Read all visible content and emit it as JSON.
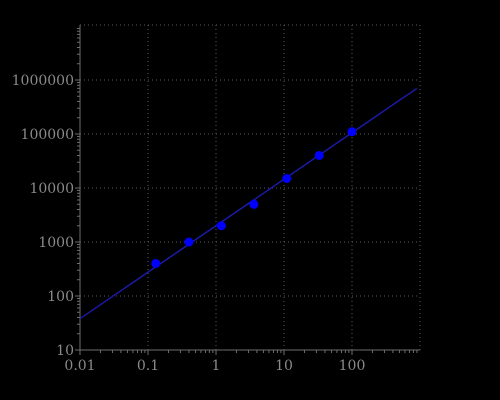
{
  "chart_data": {
    "type": "scatter",
    "title": "",
    "xlabel": "",
    "ylabel": "",
    "x_scale": "log",
    "y_scale": "log",
    "xlim": [
      0.01,
      1000
    ],
    "ylim": [
      10,
      10000000
    ],
    "x_ticks": [
      {
        "value": 0.01,
        "label": "0.01"
      },
      {
        "value": 0.1,
        "label": "0.1"
      },
      {
        "value": 1,
        "label": "1"
      },
      {
        "value": 10,
        "label": "10"
      },
      {
        "value": 100,
        "label": "100"
      }
    ],
    "y_ticks": [
      {
        "value": 10,
        "label": "10"
      },
      {
        "value": 100,
        "label": "100"
      },
      {
        "value": 1000,
        "label": "1000"
      },
      {
        "value": 10000,
        "label": "10000"
      },
      {
        "value": 100000,
        "label": "100000"
      },
      {
        "value": 1000000,
        "label": "1000000"
      }
    ],
    "grid": true,
    "series": [
      {
        "kind": "points",
        "color": "#0000ff",
        "points": [
          {
            "x": 0.13,
            "y": 400
          },
          {
            "x": 0.4,
            "y": 1000
          },
          {
            "x": 1.2,
            "y": 2000
          },
          {
            "x": 3.6,
            "y": 5000
          },
          {
            "x": 11,
            "y": 15000
          },
          {
            "x": 33,
            "y": 40000
          },
          {
            "x": 100,
            "y": 110000
          }
        ]
      },
      {
        "kind": "fit-line",
        "color": "#1a1aa6",
        "points": [
          {
            "x": 0.01,
            "y": 38
          },
          {
            "x": 900,
            "y": 700000
          }
        ]
      }
    ]
  },
  "colors": {
    "background": "#000000",
    "axis": "#6e6e6e",
    "grid": "#5a5a5a",
    "tick_label": "#8a8a8a"
  }
}
